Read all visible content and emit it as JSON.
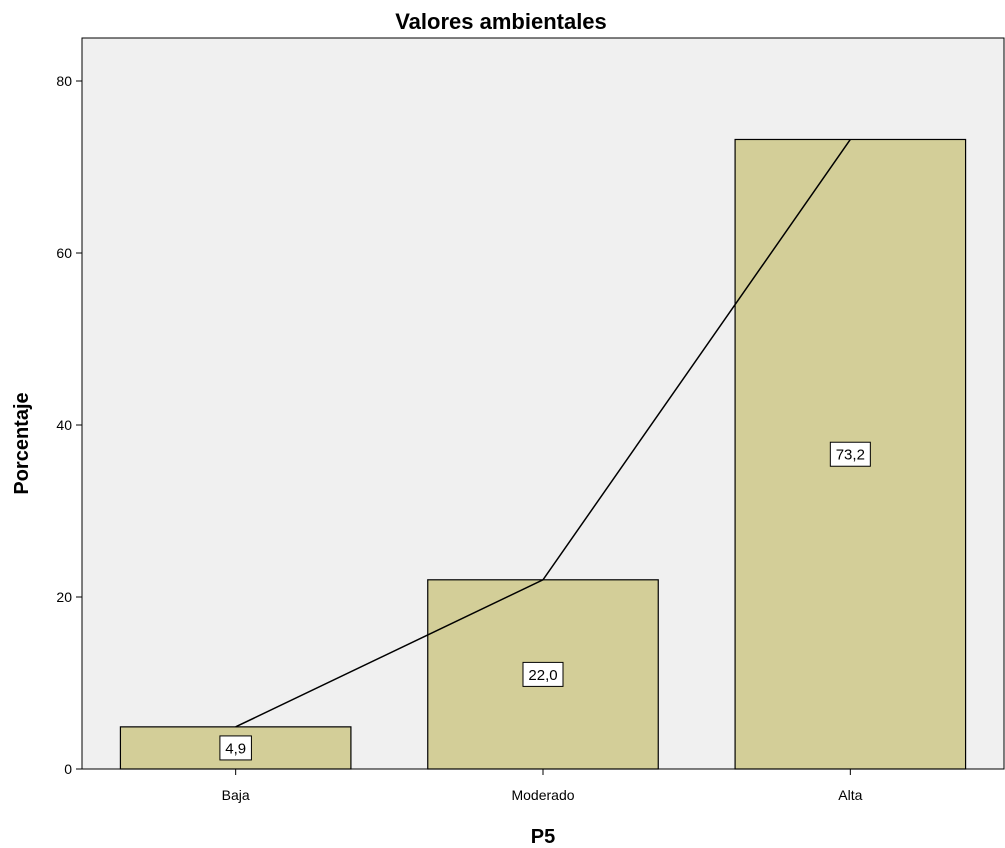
{
  "chart_data": {
    "type": "bar",
    "title": "Valores ambientales",
    "xlabel": "P5",
    "ylabel": "Porcentaje",
    "categories": [
      "Baja",
      "Moderado",
      "Alta"
    ],
    "values": [
      4.9,
      22.0,
      73.2
    ],
    "data_labels": [
      "4,9",
      "22,0",
      "73,2"
    ],
    "ylim": [
      0,
      85
    ],
    "yticks": [
      0,
      20,
      40,
      60,
      80
    ],
    "ytick_labels": [
      "0",
      "20",
      "40",
      "60",
      "80"
    ],
    "overlay_line": true,
    "grid": false,
    "colors": {
      "plot_background": "#f0f0f0",
      "bar_fill": "#d3ce98",
      "bar_stroke": "#000000",
      "line": "#000000",
      "label_box": "#ffffff"
    }
  }
}
